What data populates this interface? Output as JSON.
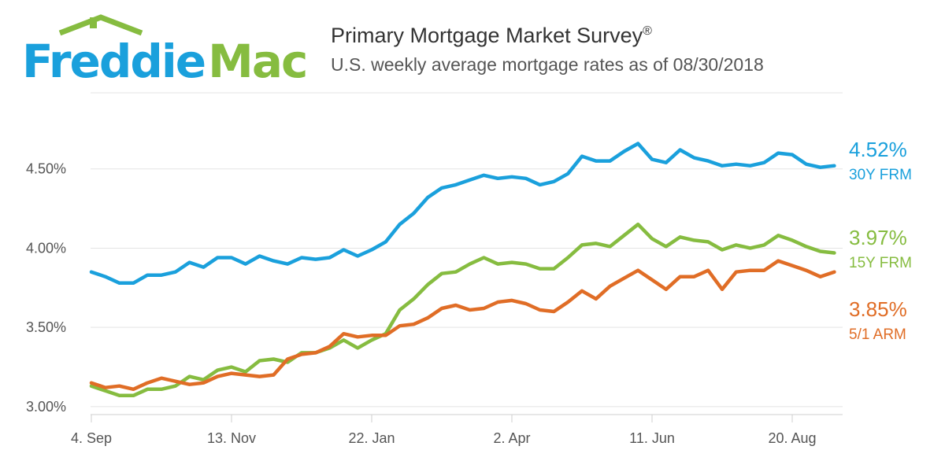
{
  "logo": {
    "text_main": "Freddie",
    "text_accent": "Mac"
  },
  "header": {
    "title": "Primary Mortgage Market Survey",
    "title_mark": "®",
    "subtitle": "U.S. weekly average mortgage rates as of 08/30/2018"
  },
  "colors": {
    "brand_blue": "#1aa0dc",
    "brand_green": "#86bc40",
    "series_30y": "#1aa0dc",
    "series_15y": "#86bc40",
    "series_arm": "#e06d26",
    "grid": "#e3e3e3"
  },
  "chart_data": {
    "type": "line",
    "x_start_label": "4. Sep",
    "xticks": [
      "4. Sep",
      "13. Nov",
      "22. Jan",
      "2. Apr",
      "11. Jun",
      "20. Aug"
    ],
    "yticks": [
      "3.00%",
      "3.50%",
      "4.00%",
      "4.50%"
    ],
    "ylim": [
      2.95,
      4.98
    ],
    "grid": true,
    "series": [
      {
        "name": "30Y FRM",
        "end_label": "4.52%",
        "color": "#1aa0dc",
        "values": [
          3.85,
          3.82,
          3.78,
          3.78,
          3.83,
          3.83,
          3.85,
          3.91,
          3.88,
          3.94,
          3.94,
          3.9,
          3.95,
          3.92,
          3.9,
          3.94,
          3.93,
          3.94,
          3.99,
          3.95,
          3.99,
          4.04,
          4.15,
          4.22,
          4.32,
          4.38,
          4.4,
          4.43,
          4.46,
          4.44,
          4.45,
          4.44,
          4.4,
          4.42,
          4.47,
          4.58,
          4.55,
          4.55,
          4.61,
          4.66,
          4.56,
          4.54,
          4.62,
          4.57,
          4.55,
          4.52,
          4.53,
          4.52,
          4.54,
          4.6,
          4.59,
          4.53,
          4.51,
          4.52
        ]
      },
      {
        "name": "15Y FRM",
        "end_label": "3.97%",
        "color": "#86bc40",
        "values": [
          3.13,
          3.1,
          3.07,
          3.07,
          3.11,
          3.11,
          3.13,
          3.19,
          3.17,
          3.23,
          3.25,
          3.22,
          3.29,
          3.3,
          3.28,
          3.34,
          3.34,
          3.37,
          3.42,
          3.37,
          3.42,
          3.46,
          3.61,
          3.68,
          3.77,
          3.84,
          3.85,
          3.9,
          3.94,
          3.9,
          3.91,
          3.9,
          3.87,
          3.87,
          3.94,
          4.02,
          4.03,
          4.01,
          4.08,
          4.15,
          4.06,
          4.01,
          4.07,
          4.05,
          4.04,
          3.99,
          4.02,
          4.0,
          4.02,
          4.08,
          4.05,
          4.01,
          3.98,
          3.97
        ]
      },
      {
        "name": "5/1 ARM",
        "end_label": "3.85%",
        "color": "#e06d26",
        "values": [
          3.15,
          3.12,
          3.13,
          3.11,
          3.15,
          3.18,
          3.16,
          3.14,
          3.15,
          3.19,
          3.21,
          3.2,
          3.19,
          3.2,
          3.3,
          3.33,
          3.34,
          3.38,
          3.46,
          3.44,
          3.45,
          3.45,
          3.51,
          3.52,
          3.56,
          3.62,
          3.64,
          3.61,
          3.62,
          3.66,
          3.67,
          3.65,
          3.61,
          3.6,
          3.66,
          3.73,
          3.68,
          3.76,
          3.81,
          3.86,
          3.8,
          3.74,
          3.82,
          3.82,
          3.86,
          3.74,
          3.85,
          3.86,
          3.86,
          3.92,
          3.89,
          3.86,
          3.82,
          3.85
        ]
      }
    ]
  }
}
